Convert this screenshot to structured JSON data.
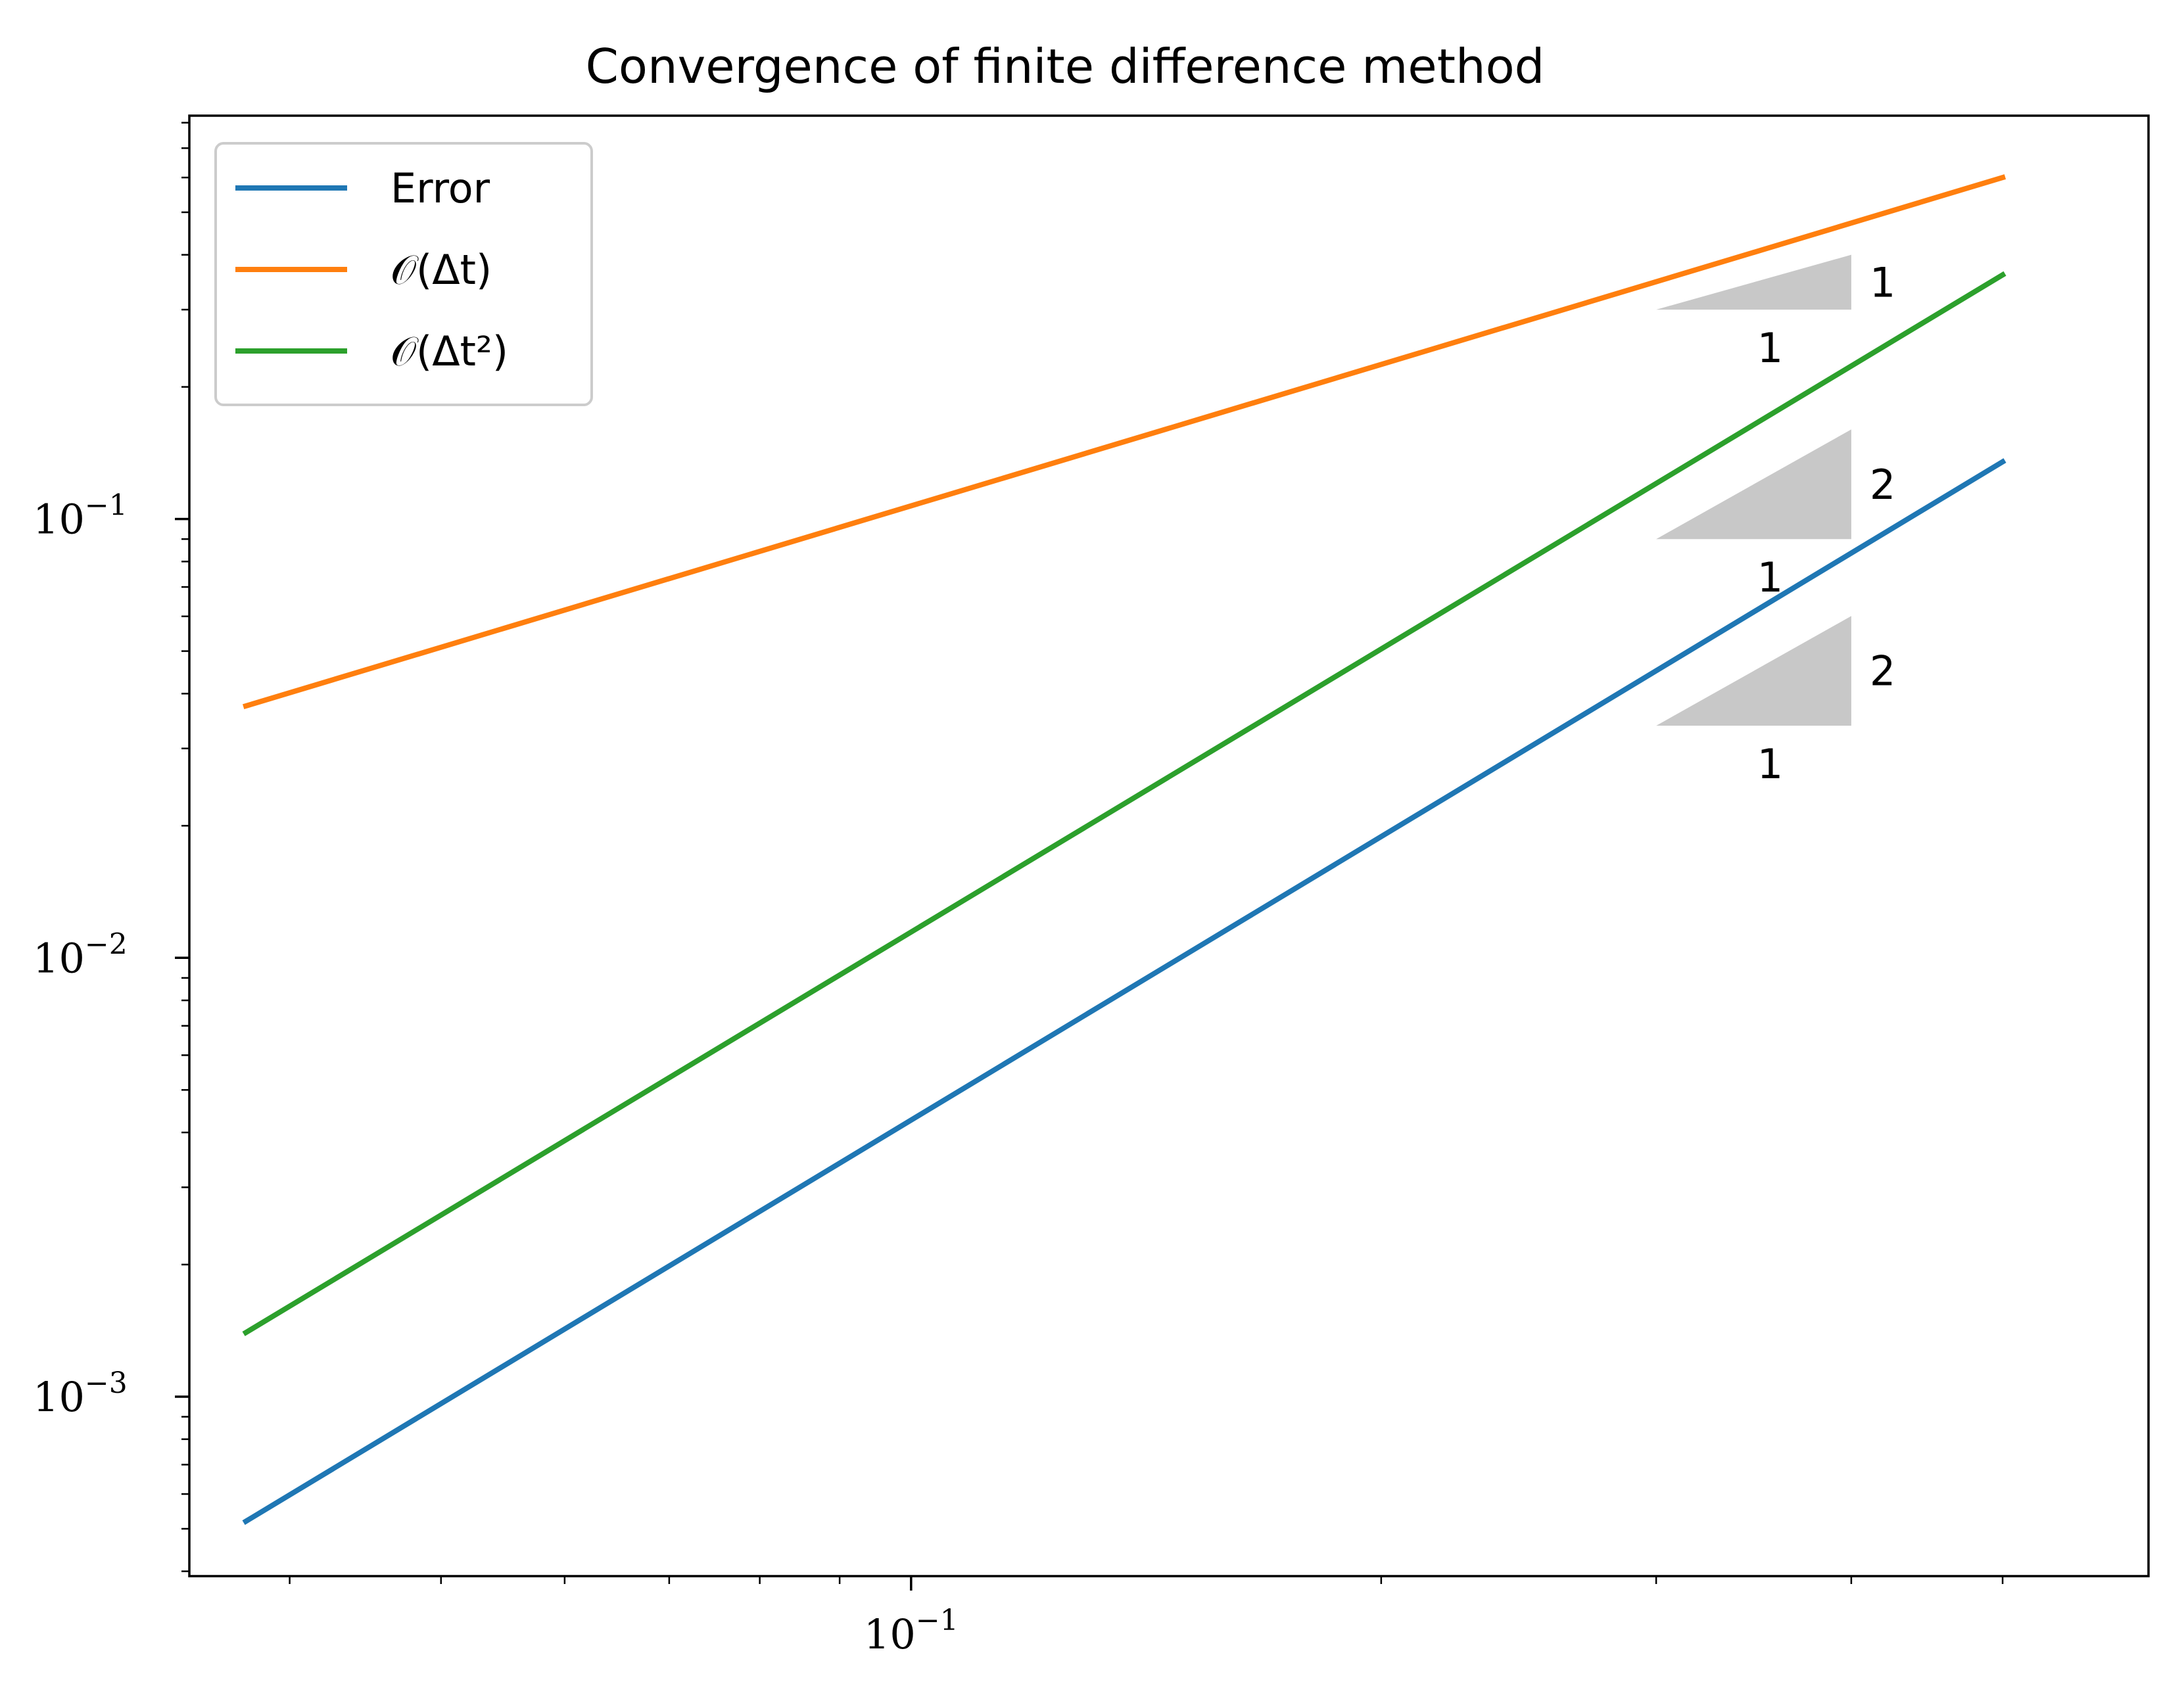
{
  "chart_data": {
    "type": "line",
    "title": "Convergence of finite difference method",
    "xlabel": "",
    "ylabel": "",
    "xscale": "log",
    "yscale": "log",
    "xlim": [
      0.0345,
      0.62
    ],
    "ylim": [
      0.00039,
      0.83
    ],
    "x_major_ticks": [
      {
        "value": 0.1,
        "base": "10",
        "exp": "−1"
      }
    ],
    "y_major_ticks": [
      {
        "value": 0.1,
        "base": "10",
        "exp": "−1"
      },
      {
        "value": 0.01,
        "base": "10",
        "exp": "−2"
      },
      {
        "value": 0.001,
        "base": "10",
        "exp": "−3"
      }
    ],
    "x_minor_ticks": [
      0.04,
      0.05,
      0.06,
      0.07,
      0.08,
      0.09,
      0.2,
      0.3,
      0.4,
      0.5
    ],
    "y_minor_ticks": [
      0.0004,
      0.0005,
      0.0006,
      0.0007,
      0.0008,
      0.0009,
      0.002,
      0.003,
      0.004,
      0.005,
      0.006,
      0.007,
      0.008,
      0.009,
      0.02,
      0.03,
      0.04,
      0.05,
      0.06,
      0.07,
      0.08,
      0.09,
      0.2,
      0.3,
      0.4,
      0.5,
      0.6,
      0.7,
      0.8
    ],
    "series": [
      {
        "name": "Error",
        "color": "#1f77b4",
        "x": [
          0.0375,
          0.5
        ],
        "y": [
          0.00052,
          0.135
        ]
      },
      {
        "name": "𝒪(Δt)",
        "color": "#ff7f0e",
        "x": [
          0.0375,
          0.5
        ],
        "y": [
          0.0375,
          0.6
        ]
      },
      {
        "name": "𝒪(Δt²)",
        "color": "#2ca02c",
        "x": [
          0.0375,
          0.5
        ],
        "y": [
          0.0014,
          0.36
        ]
      }
    ],
    "legend": {
      "position": "upper left",
      "labels": [
        "Error",
        "𝒪(Δt)",
        "𝒪(Δt²)"
      ]
    },
    "slope_triangles": [
      {
        "series": "𝒪(Δt)",
        "x0": 0.3,
        "x1": 0.4,
        "y_base": 0.3,
        "y_top": 0.4,
        "run_label": "1",
        "rise_label": "1",
        "fill": "#c8c8c8"
      },
      {
        "series": "𝒪(Δt²)",
        "x0": 0.3,
        "x1": 0.4,
        "y_base": 0.09,
        "y_top": 0.16,
        "run_label": "1",
        "rise_label": "2",
        "fill": "#c8c8c8"
      },
      {
        "series": "Error",
        "x0": 0.3,
        "x1": 0.4,
        "y_base": 0.0338,
        "y_top": 0.0601,
        "run_label": "1",
        "rise_label": "2",
        "fill": "#c8c8c8"
      }
    ],
    "grid": false
  }
}
